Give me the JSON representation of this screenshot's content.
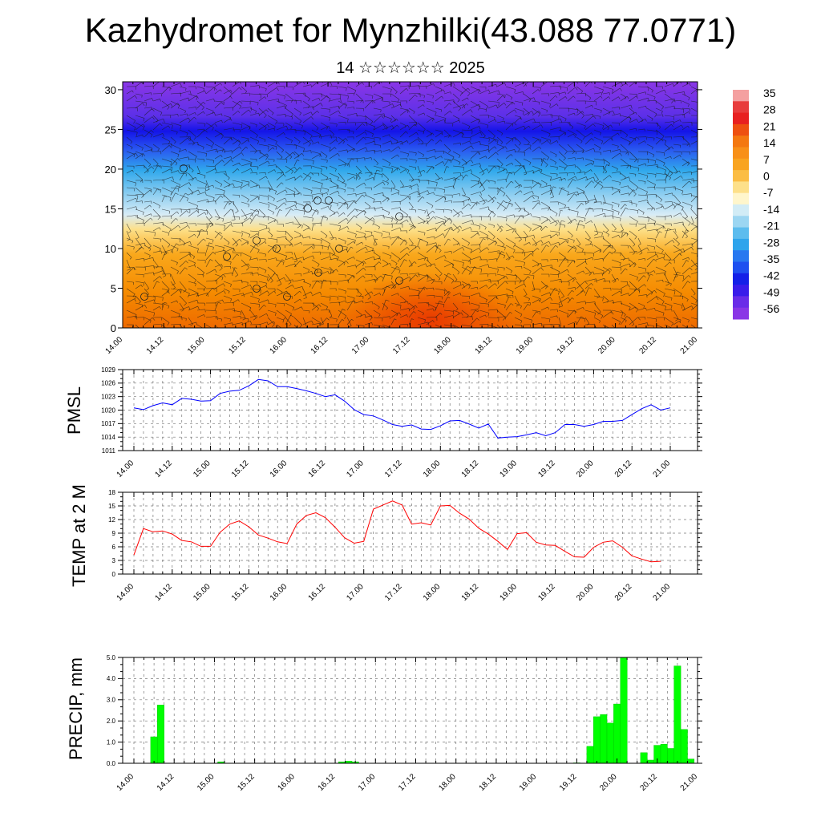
{
  "header": {
    "title": "Kazhydromet for Mynzhilki(43.088 77.0771)",
    "subtitle": "14 ☆☆☆☆☆☆ 2025"
  },
  "time_labels": [
    "14.00",
    "14.12",
    "15.00",
    "15.12",
    "16.00",
    "16.12",
    "17.00",
    "17.12",
    "18.00",
    "18.12",
    "19.00",
    "19.12",
    "20.00",
    "20.12",
    "21.00"
  ],
  "colors": {
    "pmsl_line": "#0000ff",
    "temp_line": "#ff0000",
    "precip_bar": "#00ff00",
    "precip_bar_edge": "#00cc00"
  },
  "chart_data": [
    {
      "type": "heatmap",
      "name": "cross-section",
      "y_ticks": [
        0,
        5,
        10,
        15,
        20,
        25,
        30
      ],
      "ylim": [
        0,
        31
      ],
      "legend_labels": [
        35,
        28,
        21,
        14,
        7,
        0,
        -7,
        -14,
        -21,
        -28,
        -35,
        -42,
        -49,
        -56
      ],
      "overlay": "wind barbs"
    },
    {
      "type": "line",
      "ylabel": "PMSL",
      "ylim": [
        1011,
        1029
      ],
      "y_ticks": [
        1011,
        1014,
        1017,
        1020,
        1023,
        1026,
        1029
      ],
      "series": [
        {
          "values": [
            1020.5,
            1020.1,
            1021.0,
            1021.6,
            1021.2,
            1022.6,
            1022.4,
            1022.0,
            1022.1,
            1023.7,
            1024.2,
            1024.4,
            1025.4,
            1026.8,
            1026.5,
            1025.2,
            1025.2,
            1024.8,
            1024.3,
            1023.7,
            1023.0,
            1023.4,
            1022.0,
            1020.1,
            1019.0,
            1018.7,
            1017.8,
            1016.8,
            1016.4,
            1016.7,
            1015.8,
            1015.7,
            1016.5,
            1017.6,
            1017.7,
            1016.9,
            1016.0,
            1016.9,
            1013.8,
            1014.0,
            1014.1,
            1014.5,
            1015.0,
            1014.3,
            1015.0,
            1016.8,
            1016.8,
            1016.4,
            1016.8,
            1017.5,
            1017.5,
            1017.7,
            1019.0,
            1020.3,
            1021.2,
            1020.0,
            1020.5
          ]
        }
      ]
    },
    {
      "type": "line",
      "ylabel": "TEMP at 2 M",
      "ylim": [
        0,
        18
      ],
      "y_ticks": [
        0,
        3,
        6,
        9,
        12,
        15,
        18
      ],
      "series": [
        {
          "values": [
            4.2,
            10.0,
            9.3,
            9.5,
            8.8,
            7.4,
            7.1,
            6.1,
            6.1,
            9.2,
            11.0,
            11.7,
            10.4,
            8.6,
            7.9,
            7.1,
            6.7,
            11.0,
            12.9,
            13.5,
            12.4,
            10.3,
            8.0,
            6.8,
            7.2,
            14.3,
            15.2,
            16.1,
            15.2,
            11.0,
            11.3,
            10.8,
            15.0,
            15.1,
            13.4,
            12.1,
            10.1,
            8.8,
            7.2,
            5.4,
            8.9,
            9.1,
            7.0,
            6.4,
            6.3,
            5.0,
            3.8,
            3.7,
            5.9,
            7.0,
            7.3,
            5.9,
            4.0,
            3.3,
            2.7,
            2.8
          ]
        }
      ]
    },
    {
      "type": "bar",
      "ylabel": "PRECIP, mm",
      "ylim": [
        0,
        5.0
      ],
      "y_ticks": [
        "0.0",
        "1.0",
        "2.0",
        "3.0",
        "4.0",
        "5.0"
      ],
      "values": [
        0,
        0,
        0,
        1.25,
        2.75,
        0,
        0,
        0,
        0,
        0,
        0,
        0,
        0,
        0.07,
        0,
        0,
        0,
        0,
        0,
        0,
        0,
        0,
        0,
        0,
        0,
        0,
        0,
        0,
        0,
        0,
        0,
        0.07,
        0.1,
        0.07,
        0,
        0,
        0,
        0,
        0,
        0,
        0,
        0,
        0,
        0,
        0,
        0,
        0,
        0,
        0,
        0,
        0,
        0,
        0,
        0,
        0,
        0,
        0,
        0,
        0,
        0,
        0,
        0,
        0,
        0,
        0,
        0,
        0.02,
        0,
        0.8,
        2.2,
        2.3,
        1.9,
        2.8,
        5.0,
        0,
        0,
        0.5,
        0.15,
        0.85,
        0.9,
        0.7,
        4.6,
        1.6,
        0.2,
        0,
        0
      ]
    }
  ]
}
